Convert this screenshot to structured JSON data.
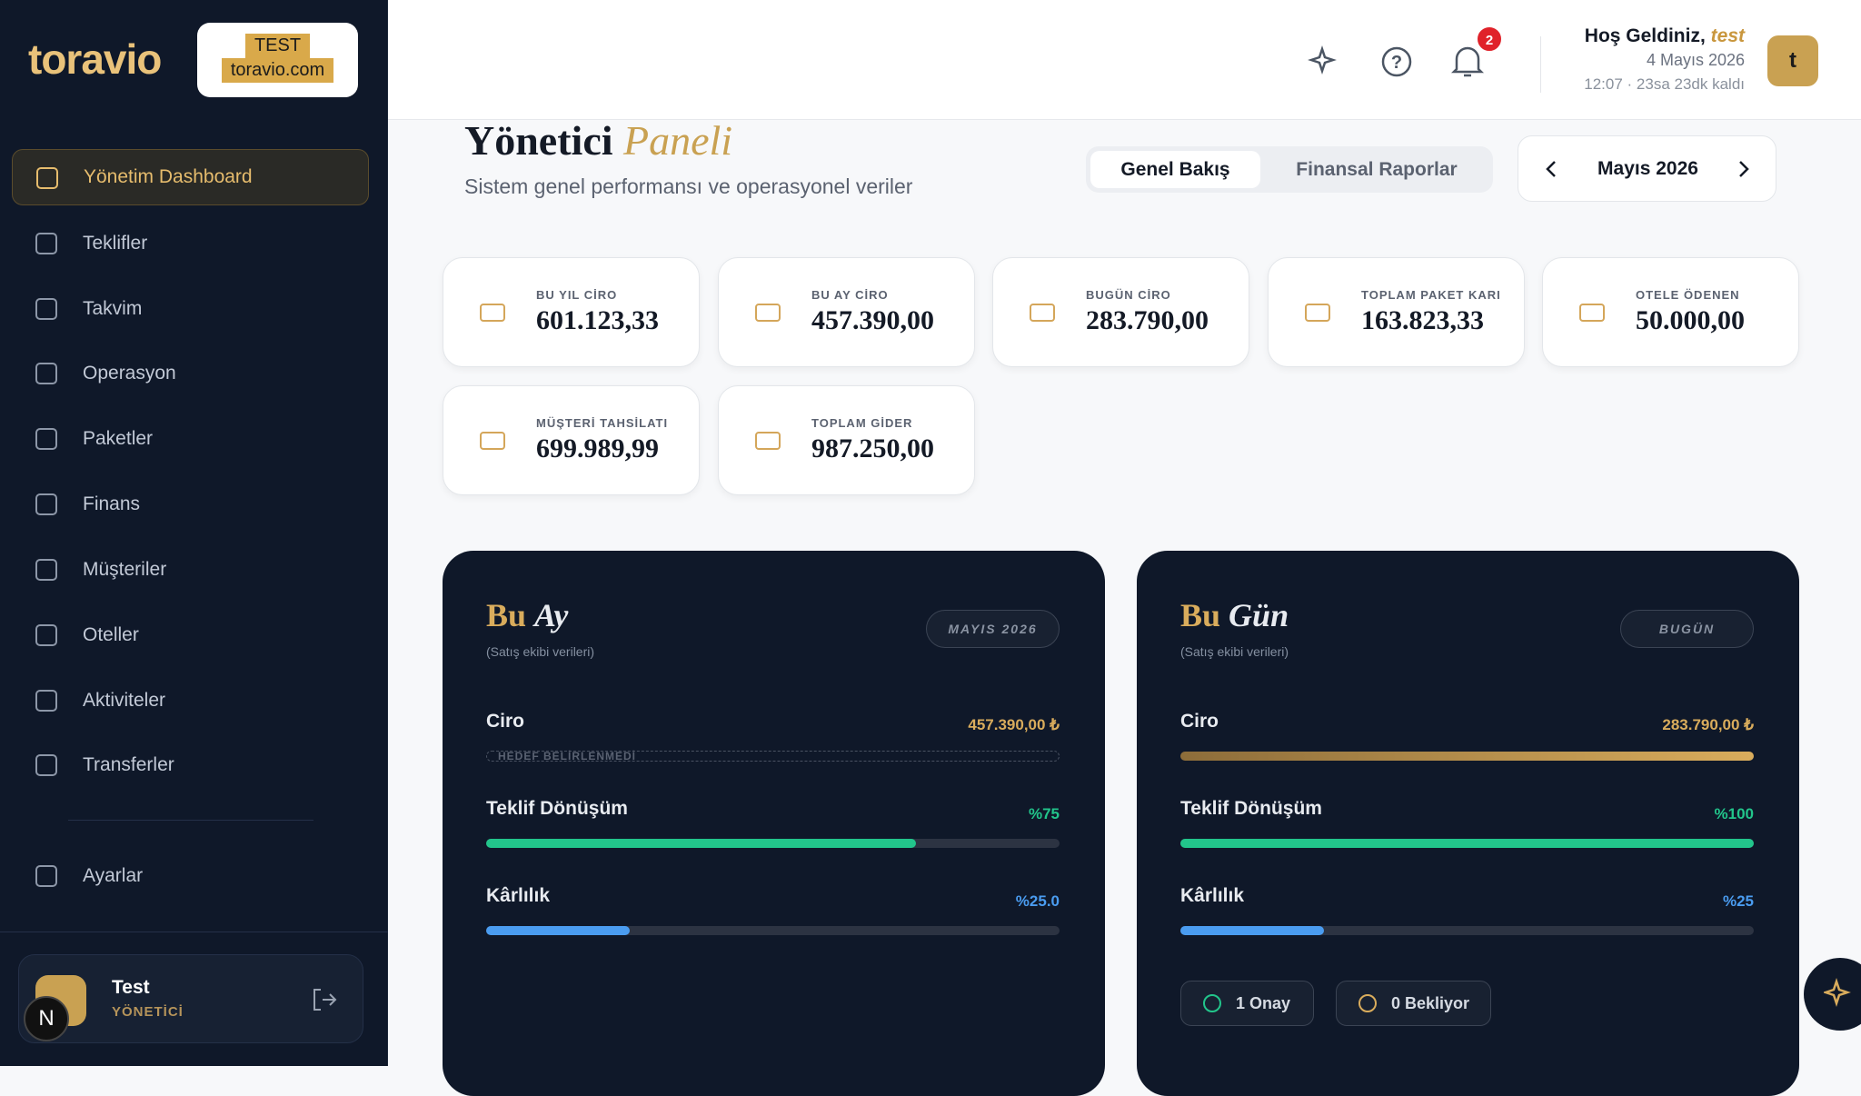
{
  "sidebar": {
    "logo": "toravio",
    "badge": [
      "TEST",
      "toravio.com"
    ],
    "nav": [
      "Yönetim Dashboard",
      "Teklifler",
      "Takvim",
      "Operasyon",
      "Paketler",
      "Finans",
      "Müşteriler",
      "Oteller",
      "Aktiviteler",
      "Transferler",
      "Ayarlar"
    ],
    "user": {
      "name": "Test",
      "role": "YÖNETİCİ",
      "initial": "N"
    }
  },
  "header": {
    "notifications": 2,
    "greeting": "Hoş Geldiniz,",
    "user": "test",
    "date": "4 Mayıs 2026",
    "time": "12:07 · 23sa 23dk kaldı",
    "avatar": "t"
  },
  "page": {
    "title": "Yönetici",
    "title_em": "Paneli",
    "subtitle": "Sistem genel performansı ve operasyonel veriler",
    "tabs": [
      "Genel Bakış",
      "Finansal Raporlar"
    ],
    "month": "Mayıs 2026"
  },
  "stats": [
    {
      "label": "BU YIL CİRO",
      "value": "601.123,33"
    },
    {
      "label": "BU AY CİRO",
      "value": "457.390,00"
    },
    {
      "label": "BUGÜN CİRO",
      "value": "283.790,00"
    },
    {
      "label": "TOPLAM PAKET KARI",
      "value": "163.823,33"
    },
    {
      "label": "OTELE ÖDENEN",
      "value": "50.000,00"
    },
    {
      "label": "MÜŞTERİ TAHSİLATI",
      "value": "699.989,99"
    },
    {
      "label": "TOPLAM GİDER",
      "value": "987.250,00"
    }
  ],
  "panels": [
    {
      "title": "Bu",
      "title_em": "Ay",
      "note": "(Satış ekibi verileri)",
      "badge": "MAYIS 2026",
      "ciro": {
        "label": "Ciro",
        "value": "457.390,00 ₺",
        "target": "HEDEF BELİRLENMEDİ"
      },
      "bars": [
        {
          "label": "Teklif Dönüşüm",
          "value": 75,
          "value_label": "%75",
          "color": "#22c58b"
        },
        {
          "label": "Kârlılık",
          "value": 25,
          "value_label": "%25.0",
          "color": "#4a9cf0"
        }
      ]
    },
    {
      "title": "Bu",
      "title_em": "Gün",
      "note": "(Satış ekibi verileri)",
      "badge": "BUGÜN",
      "ciro": {
        "label": "Ciro",
        "value": "283.790,00 ₺"
      },
      "bars": [
        {
          "label": "Teklif Dönüşüm",
          "value": 100,
          "value_label": "%100",
          "color": "#22c58b"
        },
        {
          "label": "Kârlılık",
          "value": 25,
          "value_label": "%25",
          "color": "#4a9cf0"
        }
      ],
      "buttons": [
        "1 Onay",
        "0 Bekliyor"
      ]
    }
  ]
}
